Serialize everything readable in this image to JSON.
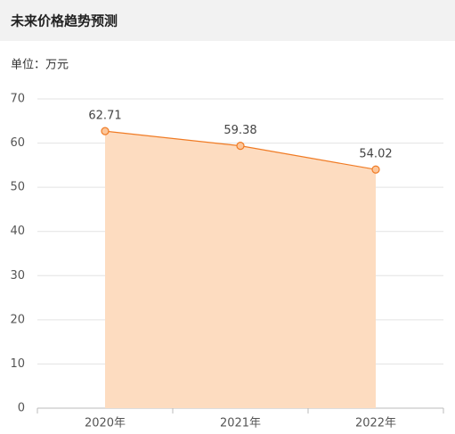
{
  "chart_data": {
    "type": "area",
    "title": "未来价格趋势预测",
    "subtitle": "单位：万元",
    "categories": [
      "2020年",
      "2021年",
      "2022年"
    ],
    "values": [
      62.71,
      59.38,
      54.02
    ],
    "color": "#f07b24",
    "fill": "#fddcc0",
    "ylim": [
      0,
      70
    ],
    "yticks": [
      0,
      10,
      20,
      30,
      40,
      50,
      60,
      70
    ],
    "grid": true
  }
}
